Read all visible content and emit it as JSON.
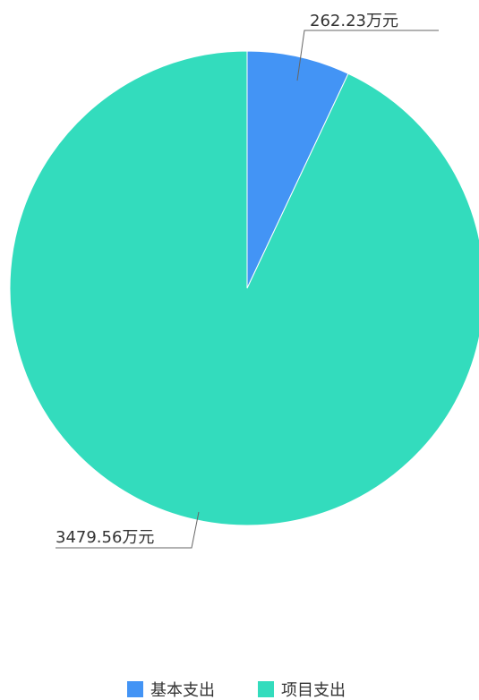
{
  "chart_data": {
    "type": "pie",
    "start_angle_deg": -90,
    "direction": "clockwise",
    "slices": [
      {
        "name": "基本支出",
        "value": 262.23,
        "label": "262.23万元",
        "color": "#4394f5"
      },
      {
        "name": "项目支出",
        "value": 3479.56,
        "label": "3479.56万元",
        "color": "#33dcbd"
      }
    ],
    "legend": {
      "position": "bottom-center",
      "items": [
        "基本支出",
        "项目支出"
      ]
    }
  }
}
